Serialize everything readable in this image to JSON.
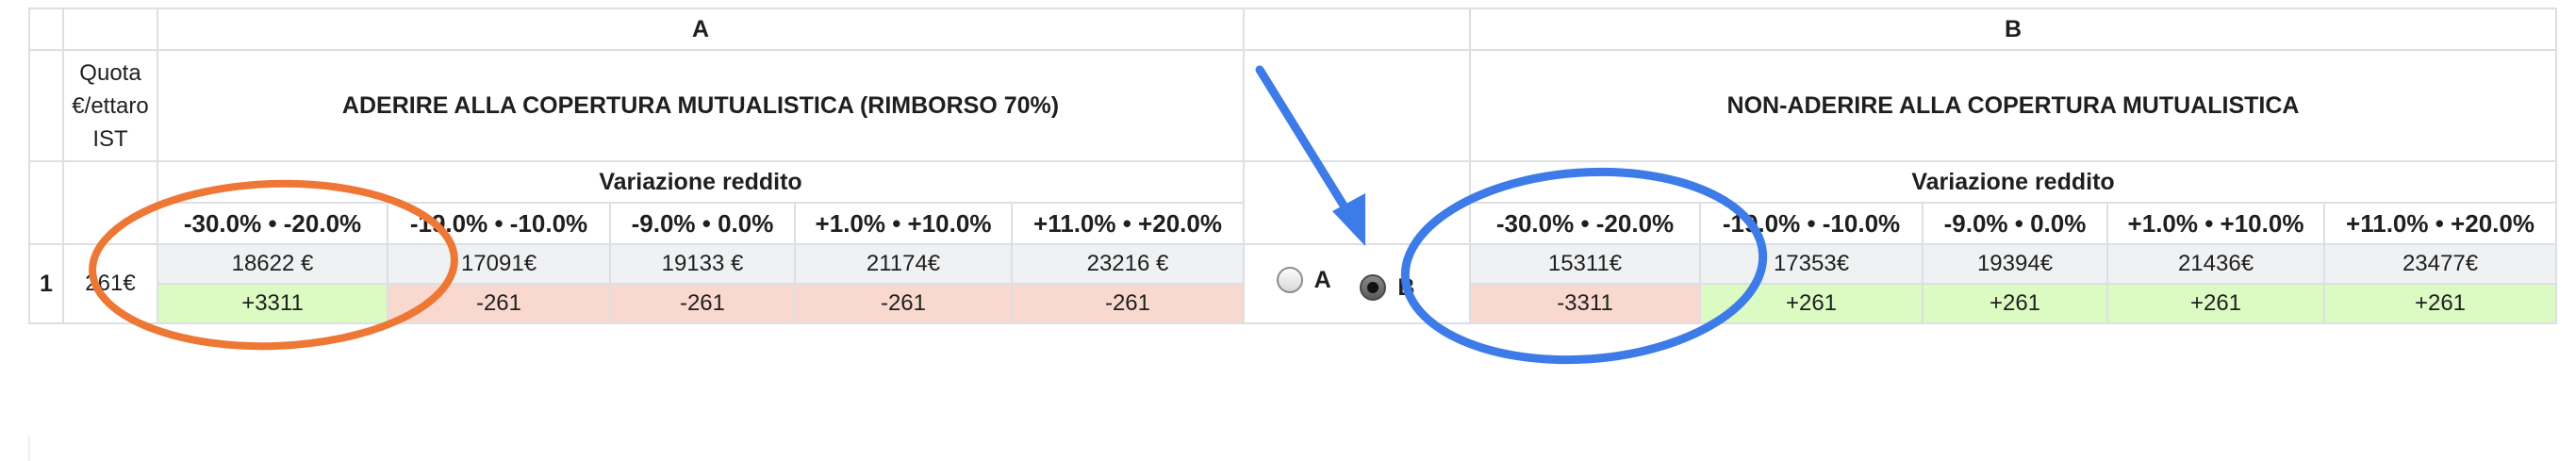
{
  "table": {
    "group_a_label": "A",
    "group_b_label": "B",
    "quota_header": "Quota €/ettaro IST",
    "option_a_title": "ADERIRE ALLA COPERTURA MUTUALISTICA (RIMBORSO 70%)",
    "option_b_title": "NON-ADERIRE ALLA COPERTURA MUTUALISTICA",
    "variation_label_a": "Variazione reddito",
    "variation_label_b": "Variazione reddito",
    "ranges": [
      "-30.0% • -20.0%",
      "-19.0% • -10.0%",
      "-9.0% • 0.0%",
      "+1.0% • +10.0%",
      "+11.0% • +20.0%"
    ],
    "row": {
      "number": "1",
      "quota": "261€",
      "a_income": [
        "18622 €",
        "17091€",
        "19133 €",
        "21174€",
        "23216 €"
      ],
      "a_delta": [
        "+3311",
        "-261",
        "-261",
        "-261",
        "-261"
      ],
      "b_income": [
        "15311€",
        "17353€",
        "19394€",
        "21436€",
        "23477€"
      ],
      "b_delta": [
        "-3311",
        "+261",
        "+261",
        "+261",
        "+261"
      ]
    },
    "choice": {
      "option_a": "A",
      "option_b": "B",
      "selected": "B"
    }
  },
  "colors": {
    "positive_bg": "#dcfbc3",
    "negative_bg": "#f9d9cf",
    "income_bg": "#eff1f3",
    "orange_annotation": "#ee7735",
    "blue_annotation": "#3d7be8"
  }
}
